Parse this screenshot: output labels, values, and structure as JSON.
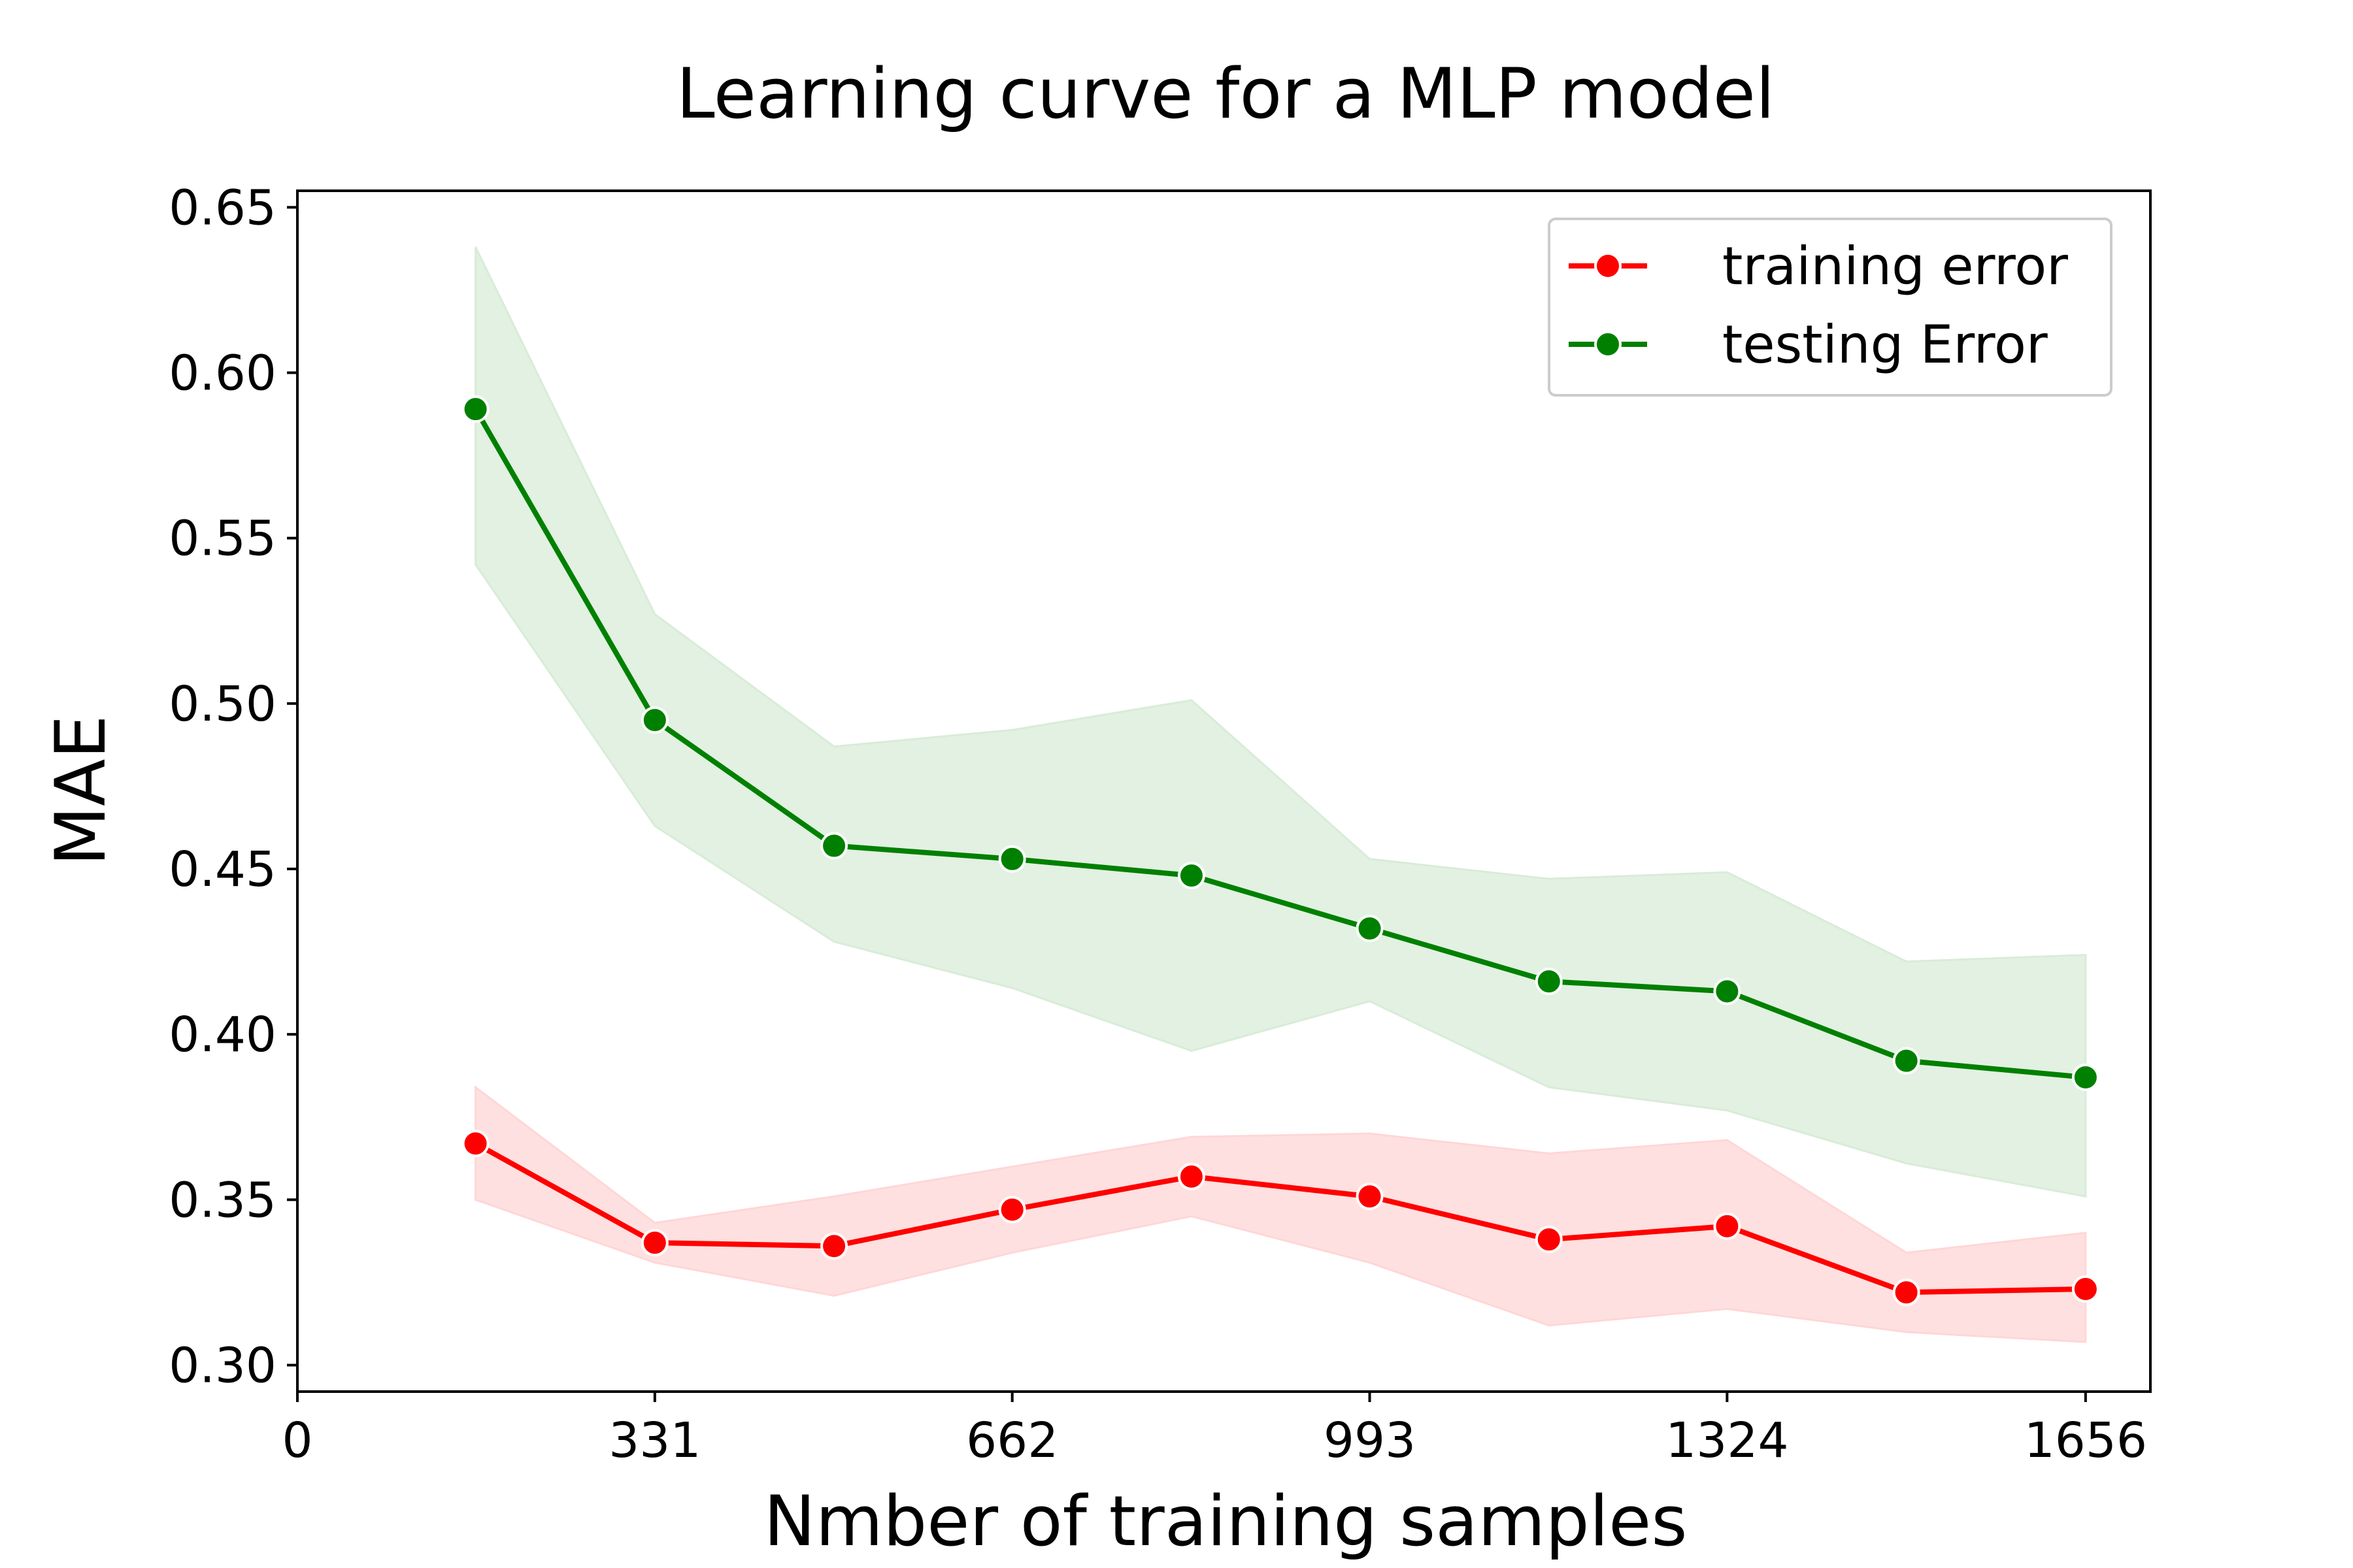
{
  "chart_data": {
    "type": "line",
    "title": "Learning curve for a MLP model",
    "xlabel": "Nmber of training samples",
    "ylabel": "MAE",
    "xlim": [
      0,
      1716
    ],
    "ylim": [
      0.292,
      0.655
    ],
    "xticks": [
      0,
      331,
      662,
      993,
      1324,
      1656
    ],
    "xtick_labels": [
      "0",
      "331",
      "662",
      "993",
      "1324",
      "1656"
    ],
    "yticks": [
      0.3,
      0.35,
      0.4,
      0.45,
      0.5,
      0.55,
      0.6,
      0.65
    ],
    "ytick_labels": [
      "0.30",
      "0.35",
      "0.40",
      "0.45",
      "0.50",
      "0.55",
      "0.60",
      "0.65"
    ],
    "x": [
      165,
      331,
      497,
      662,
      828,
      993,
      1159,
      1324,
      1490,
      1656
    ],
    "series": [
      {
        "name": "training error",
        "color": "#ff0000",
        "band_color": "#ffd6d6",
        "values": [
          0.367,
          0.337,
          0.336,
          0.347,
          0.357,
          0.351,
          0.338,
          0.342,
          0.322,
          0.323
        ],
        "lower": [
          0.35,
          0.331,
          0.321,
          0.334,
          0.345,
          0.331,
          0.312,
          0.317,
          0.31,
          0.307
        ],
        "upper": [
          0.384,
          0.343,
          0.351,
          0.36,
          0.369,
          0.37,
          0.364,
          0.368,
          0.334,
          0.34
        ]
      },
      {
        "name": "testing Error",
        "color": "#008000",
        "band_color": "#d8ecd8",
        "values": [
          0.589,
          0.495,
          0.457,
          0.453,
          0.448,
          0.432,
          0.416,
          0.413,
          0.392,
          0.387
        ],
        "lower": [
          0.542,
          0.463,
          0.428,
          0.414,
          0.395,
          0.41,
          0.384,
          0.377,
          0.361,
          0.351
        ],
        "upper": [
          0.638,
          0.527,
          0.487,
          0.492,
          0.501,
          0.453,
          0.447,
          0.449,
          0.422,
          0.424
        ]
      }
    ],
    "grid": false,
    "legend_position": "top-right"
  }
}
